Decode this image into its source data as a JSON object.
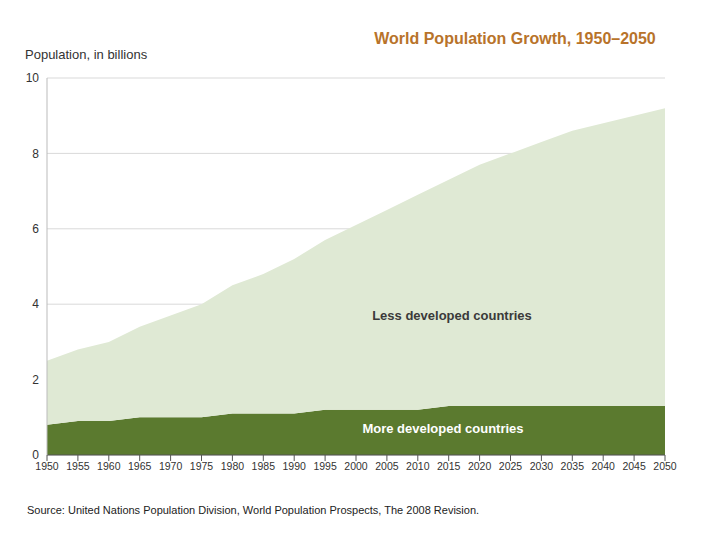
{
  "chart_data": {
    "type": "area",
    "title": "World Population Growth, 1950–2050",
    "y_label": "Population, in billions",
    "source": "Source: United Nations Population Division, World Population Prospects, The 2008 Revision.",
    "stacked": true,
    "grid": true,
    "x": [
      1950,
      1955,
      1960,
      1965,
      1970,
      1975,
      1980,
      1985,
      1990,
      1995,
      2000,
      2005,
      2010,
      2015,
      2020,
      2025,
      2030,
      2035,
      2040,
      2045,
      2050
    ],
    "xlim": [
      1950,
      2050
    ],
    "xticks": [
      1950,
      1955,
      1960,
      1965,
      1970,
      1975,
      1980,
      1985,
      1990,
      1995,
      2000,
      2005,
      2010,
      2015,
      2020,
      2025,
      2030,
      2035,
      2040,
      2045,
      2050
    ],
    "ylim": [
      0,
      10
    ],
    "yticks": [
      0,
      2,
      4,
      6,
      8,
      10
    ],
    "series": [
      {
        "name": "More developed countries",
        "color": "#5b7a2f",
        "values": [
          0.8,
          0.9,
          0.9,
          1.0,
          1.0,
          1.0,
          1.1,
          1.1,
          1.1,
          1.2,
          1.2,
          1.2,
          1.2,
          1.3,
          1.3,
          1.3,
          1.3,
          1.3,
          1.3,
          1.3,
          1.3
        ]
      },
      {
        "name": "Less developed countries",
        "color": "#dfe9d4",
        "values": [
          1.7,
          1.9,
          2.1,
          2.4,
          2.7,
          3.0,
          3.4,
          3.7,
          4.1,
          4.5,
          4.9,
          5.3,
          5.7,
          6.0,
          6.4,
          6.7,
          7.0,
          7.3,
          7.5,
          7.7,
          7.9
        ]
      }
    ]
  }
}
